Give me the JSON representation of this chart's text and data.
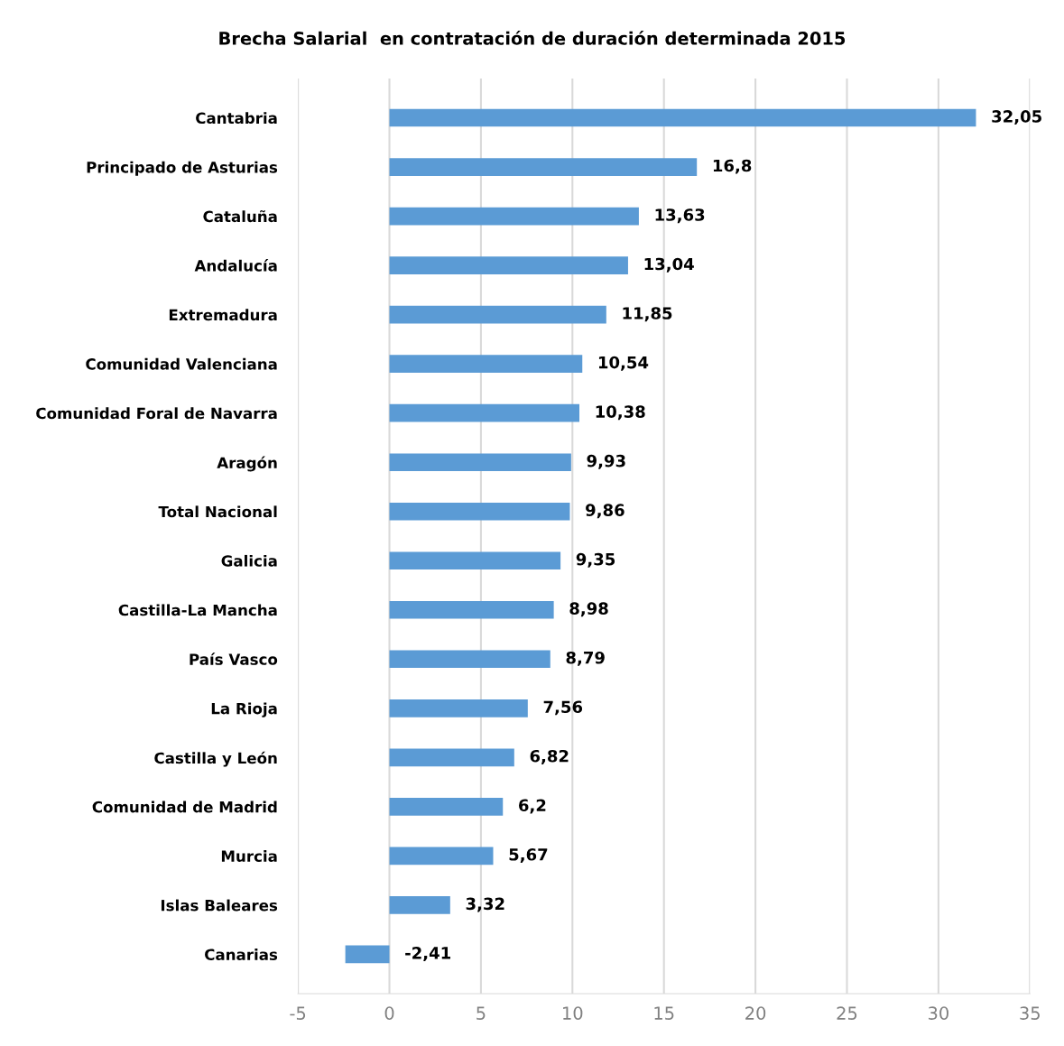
{
  "chart_data": {
    "type": "bar",
    "orientation": "horizontal",
    "title": "Brecha Salarial  en contratación de duración determinada 2015",
    "categories": [
      "Cantabria",
      "Principado de Asturias",
      "Cataluña",
      "Andalucía",
      "Extremadura",
      "Comunidad Valenciana",
      "Comunidad Foral de Navarra",
      "Aragón",
      "Total Nacional",
      "Galicia",
      "Castilla-La Mancha",
      "País Vasco",
      "La Rioja",
      "Castilla y León",
      "Comunidad de Madrid",
      "Murcia",
      "Islas Baleares",
      "Canarias"
    ],
    "values": [
      32.05,
      16.8,
      13.63,
      13.04,
      11.85,
      10.54,
      10.38,
      9.93,
      9.86,
      9.35,
      8.98,
      8.79,
      7.56,
      6.82,
      6.2,
      5.67,
      3.32,
      -2.41
    ],
    "value_labels": [
      "32,05",
      "16,8",
      "13,63",
      "13,04",
      "11,85",
      "10,54",
      "10,38",
      "9,93",
      "9,86",
      "9,35",
      "8,98",
      "8,79",
      "7,56",
      "6,82",
      "6,2",
      "5,67",
      "3,32",
      "-2,41"
    ],
    "color": "#5b9bd5",
    "xlim": [
      -5,
      35
    ],
    "xticks": [
      -5,
      0,
      5,
      10,
      15,
      20,
      25,
      30,
      35
    ],
    "grid": "x",
    "legend": false
  }
}
